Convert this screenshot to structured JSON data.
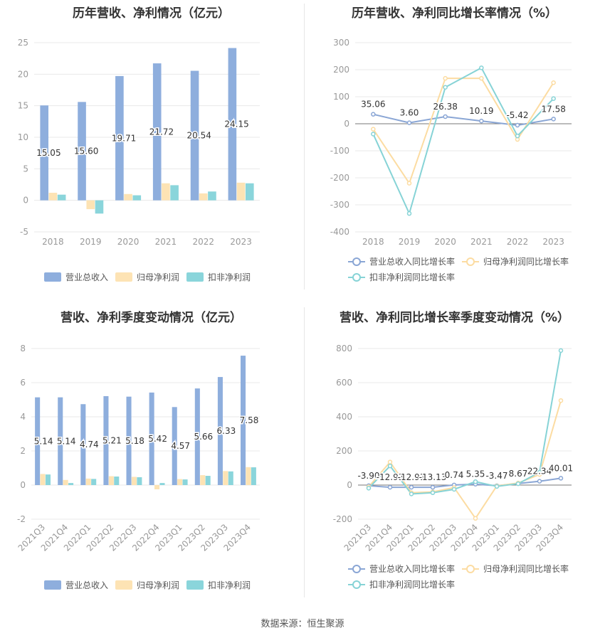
{
  "source_text": "数据来源：恒生聚源",
  "colors": {
    "revenue": "#8eaedd",
    "net_profit": "#fde3b4",
    "deducted_profit": "#8ad5db",
    "revenue_line": "#8aa6d5",
    "net_profit_line": "#fcdca2",
    "deducted_line": "#86d3d6",
    "grid": "#e8e8e8",
    "axis_text": "#999999",
    "label_text": "#333333"
  },
  "chart_data": [
    {
      "id": "annual-amount",
      "type": "bar",
      "title": "历年营收、净利情况（亿元）",
      "categories": [
        "2018",
        "2019",
        "2020",
        "2021",
        "2022",
        "2023"
      ],
      "ylim": [
        -5,
        25
      ],
      "yticks": [
        -5,
        0,
        5,
        10,
        15,
        20,
        25
      ],
      "series": [
        {
          "name": "营业总收入",
          "values": [
            15.05,
            15.6,
            19.71,
            21.72,
            20.54,
            24.15
          ],
          "labels": [
            "15.05",
            "15.60",
            "19.71",
            "21.72",
            "20.54",
            "24.15"
          ]
        },
        {
          "name": "归母净利润",
          "values": [
            1.2,
            -1.4,
            1.0,
            2.7,
            1.1,
            2.8
          ]
        },
        {
          "name": "扣非净利润",
          "values": [
            0.9,
            -2.1,
            0.8,
            2.4,
            1.4,
            2.7
          ]
        }
      ],
      "legend": "bottom"
    },
    {
      "id": "annual-growth",
      "type": "line",
      "title": "历年营收、净利同比增长率情况（%）",
      "categories": [
        "2018",
        "2019",
        "2020",
        "2021",
        "2022",
        "2023"
      ],
      "ylim": [
        -400,
        300
      ],
      "yticks": [
        -400,
        -300,
        -200,
        -100,
        0,
        100,
        200,
        300
      ],
      "series": [
        {
          "name": "营业总收入同比增长率",
          "values": [
            35.06,
            3.6,
            26.38,
            10.19,
            -5.42,
            17.58
          ],
          "labels": [
            "35.06",
            "3.60",
            "26.38",
            "10.19",
            "-5.42",
            "17.58"
          ]
        },
        {
          "name": "归母净利润同比增长率",
          "values": [
            -20,
            -220,
            168,
            168,
            -58,
            152
          ]
        },
        {
          "name": "扣非净利润同比增长率",
          "values": [
            -38,
            -332,
            135,
            207,
            -45,
            93
          ]
        }
      ],
      "legend": "bottom"
    },
    {
      "id": "quarterly-amount",
      "type": "bar",
      "title": "营收、净利季度变动情况（亿元）",
      "categories": [
        "2021Q3",
        "2021Q4",
        "2022Q1",
        "2022Q2",
        "2022Q3",
        "2022Q4",
        "2023Q1",
        "2023Q2",
        "2023Q3",
        "2023Q4"
      ],
      "ylim": [
        -2,
        8
      ],
      "yticks": [
        -2,
        0,
        2,
        4,
        6,
        8
      ],
      "series": [
        {
          "name": "营业总收入",
          "values": [
            5.14,
            5.14,
            4.74,
            5.21,
            5.18,
            5.42,
            4.57,
            5.66,
            6.33,
            7.58
          ],
          "labels": [
            "5.14",
            "5.14",
            "4.74",
            "5.21",
            "5.18",
            "5.42",
            "4.57",
            "5.66",
            "6.33",
            "7.58"
          ]
        },
        {
          "name": "归母净利润",
          "values": [
            0.65,
            0.3,
            0.38,
            0.52,
            0.48,
            -0.25,
            0.35,
            0.58,
            0.82,
            1.05
          ]
        },
        {
          "name": "扣非净利润",
          "values": [
            0.62,
            0.12,
            0.36,
            0.5,
            0.46,
            0.12,
            0.33,
            0.54,
            0.8,
            1.04
          ]
        }
      ],
      "legend": "bottom"
    },
    {
      "id": "quarterly-growth",
      "type": "line",
      "title": "营收、净利同比增长率季度变动情况（%）",
      "categories": [
        "2021Q3",
        "2021Q4",
        "2022Q1",
        "2022Q2",
        "2022Q3",
        "2022Q4",
        "2023Q1",
        "2023Q2",
        "2023Q3",
        "2023Q4"
      ],
      "ylim": [
        -200,
        800
      ],
      "yticks": [
        -200,
        0,
        200,
        400,
        600,
        800
      ],
      "series": [
        {
          "name": "营业总收入同比增长率",
          "values": [
            -3.9,
            -12.93,
            -12.91,
            -13.13,
            0.74,
            5.35,
            -3.47,
            8.67,
            22.34,
            40.01
          ],
          "labels": [
            "-3.90",
            "-12.93",
            "-12.91",
            "-13.13",
            "0.74",
            "5.35",
            "-3.47",
            "8.67",
            "22.34",
            "40.01"
          ]
        },
        {
          "name": "归母净利润同比增长率",
          "values": [
            -10,
            135,
            -45,
            -40,
            -15,
            -195,
            -5,
            12,
            62,
            495
          ]
        },
        {
          "name": "扣非净利润同比增长率",
          "values": [
            -18,
            112,
            -52,
            -45,
            -25,
            20,
            -8,
            8,
            75,
            788
          ]
        }
      ],
      "legend": "bottom"
    }
  ]
}
